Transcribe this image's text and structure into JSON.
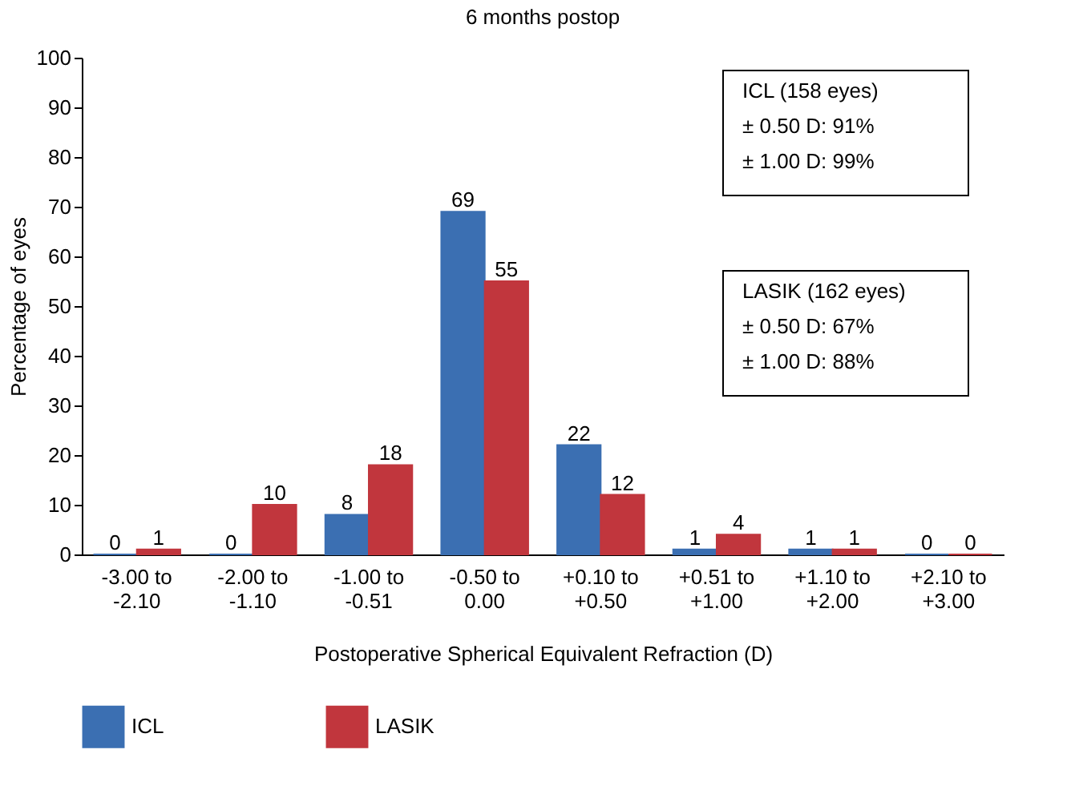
{
  "chart_data": {
    "type": "bar",
    "title": "6 months postop",
    "xlabel": "Postoperative Spherical Equivalent Refraction (D)",
    "ylabel": "Percentage of eyes",
    "categories": [
      "-3.00 to -2.10",
      "-2.00 to -1.10",
      "-1.00 to -0.51",
      "-0.50 to 0.00",
      "+0.10 to +0.50",
      "+0.51 to +1.00",
      "+1.10 to +2.00",
      "+2.10 to +3.00"
    ],
    "series": [
      {
        "name": "ICL",
        "color": "#3b6fb2",
        "values": [
          0,
          0,
          8,
          69,
          22,
          1,
          1,
          0
        ]
      },
      {
        "name": "LASIK",
        "color": "#c1363d",
        "values": [
          1,
          10,
          18,
          55,
          12,
          4,
          1,
          0
        ]
      }
    ],
    "ylim": [
      0,
      100
    ],
    "yticks": [
      0,
      10,
      20,
      30,
      40,
      50,
      60,
      70,
      80,
      90,
      100
    ],
    "grid": false,
    "legend": "bottom",
    "data_labels": true,
    "annotations": [
      "ICL (158 eyes)\n± 0.50 D: 91%\n± 1.00 D: 99%",
      "LASIK (162 eyes)\n± 0.50 D: 67%\n± 1.00 D: 88%"
    ]
  }
}
